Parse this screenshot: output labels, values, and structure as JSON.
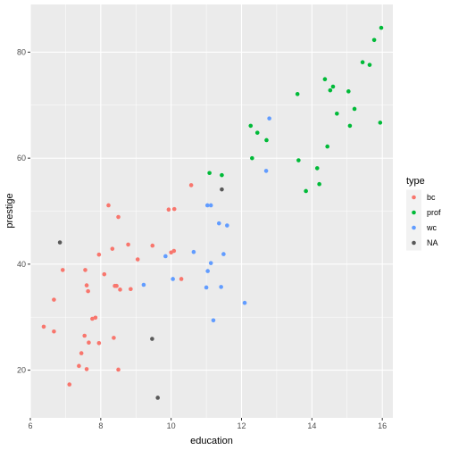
{
  "chart_data": {
    "type": "scatter",
    "xlabel": "education",
    "ylabel": "prestige",
    "xlim": [
      6.0,
      16.3
    ],
    "ylim": [
      11.0,
      89.0
    ],
    "x_ticks": [
      6,
      8,
      10,
      12,
      14,
      16
    ],
    "y_ticks": [
      20,
      40,
      60,
      80
    ],
    "grid": true,
    "legend": {
      "title": "type",
      "position": "right",
      "entries": [
        "bc",
        "prof",
        "wc",
        "NA"
      ]
    },
    "colors": {
      "bc": "#F8766D",
      "prof": "#00BA38",
      "wc": "#619CFF",
      "NA": "#595959"
    },
    "series": [
      {
        "name": "bc",
        "points": [
          [
            6.38,
            28.2
          ],
          [
            6.67,
            27.3
          ],
          [
            6.67,
            33.3
          ],
          [
            6.92,
            38.9
          ],
          [
            7.11,
            17.3
          ],
          [
            7.38,
            20.8
          ],
          [
            7.45,
            23.2
          ],
          [
            7.54,
            26.5
          ],
          [
            7.56,
            38.9
          ],
          [
            7.6,
            20.2
          ],
          [
            7.6,
            36.0
          ],
          [
            7.64,
            34.9
          ],
          [
            7.66,
            25.2
          ],
          [
            7.76,
            29.7
          ],
          [
            7.85,
            29.9
          ],
          [
            7.95,
            25.1
          ],
          [
            7.95,
            41.8
          ],
          [
            8.1,
            38.1
          ],
          [
            8.22,
            51.1
          ],
          [
            8.33,
            42.9
          ],
          [
            8.37,
            26.1
          ],
          [
            8.4,
            35.9
          ],
          [
            8.45,
            35.9
          ],
          [
            8.5,
            48.9
          ],
          [
            8.5,
            20.1
          ],
          [
            8.55,
            35.2
          ],
          [
            8.78,
            43.7
          ],
          [
            8.85,
            35.3
          ],
          [
            9.05,
            40.9
          ],
          [
            9.47,
            43.5
          ],
          [
            9.93,
            50.3
          ],
          [
            10.0,
            42.2
          ],
          [
            10.08,
            42.5
          ],
          [
            10.09,
            50.4
          ],
          [
            10.29,
            37.2
          ],
          [
            10.57,
            54.9
          ]
        ]
      },
      {
        "name": "prof",
        "points": [
          [
            11.09,
            57.2
          ],
          [
            11.44,
            56.8
          ],
          [
            12.26,
            66.1
          ],
          [
            12.3,
            60.0
          ],
          [
            12.45,
            64.8
          ],
          [
            12.71,
            63.4
          ],
          [
            13.59,
            72.1
          ],
          [
            13.62,
            59.6
          ],
          [
            13.83,
            53.8
          ],
          [
            14.15,
            58.1
          ],
          [
            14.21,
            55.1
          ],
          [
            14.37,
            74.9
          ],
          [
            14.44,
            62.2
          ],
          [
            14.52,
            72.8
          ],
          [
            14.6,
            73.5
          ],
          [
            14.71,
            68.4
          ],
          [
            15.04,
            72.6
          ],
          [
            15.08,
            66.1
          ],
          [
            15.21,
            69.3
          ],
          [
            15.44,
            78.1
          ],
          [
            15.64,
            77.6
          ],
          [
            15.77,
            82.3
          ],
          [
            15.94,
            66.7
          ],
          [
            15.97,
            84.6
          ]
        ]
      },
      {
        "name": "wc",
        "points": [
          [
            9.22,
            36.1
          ],
          [
            9.84,
            41.5
          ],
          [
            10.05,
            37.2
          ],
          [
            10.64,
            42.3
          ],
          [
            11.0,
            35.6
          ],
          [
            11.03,
            51.1
          ],
          [
            11.04,
            38.7
          ],
          [
            11.13,
            40.2
          ],
          [
            11.13,
            51.1
          ],
          [
            11.2,
            29.4
          ],
          [
            11.36,
            47.7
          ],
          [
            11.42,
            35.7
          ],
          [
            11.49,
            41.9
          ],
          [
            11.59,
            47.3
          ],
          [
            12.09,
            32.7
          ],
          [
            12.7,
            57.6
          ],
          [
            12.79,
            67.5
          ]
        ]
      },
      {
        "name": "NA",
        "points": [
          [
            6.84,
            44.1
          ],
          [
            9.46,
            25.9
          ],
          [
            9.62,
            14.8
          ],
          [
            11.44,
            54.1
          ]
        ]
      }
    ]
  }
}
